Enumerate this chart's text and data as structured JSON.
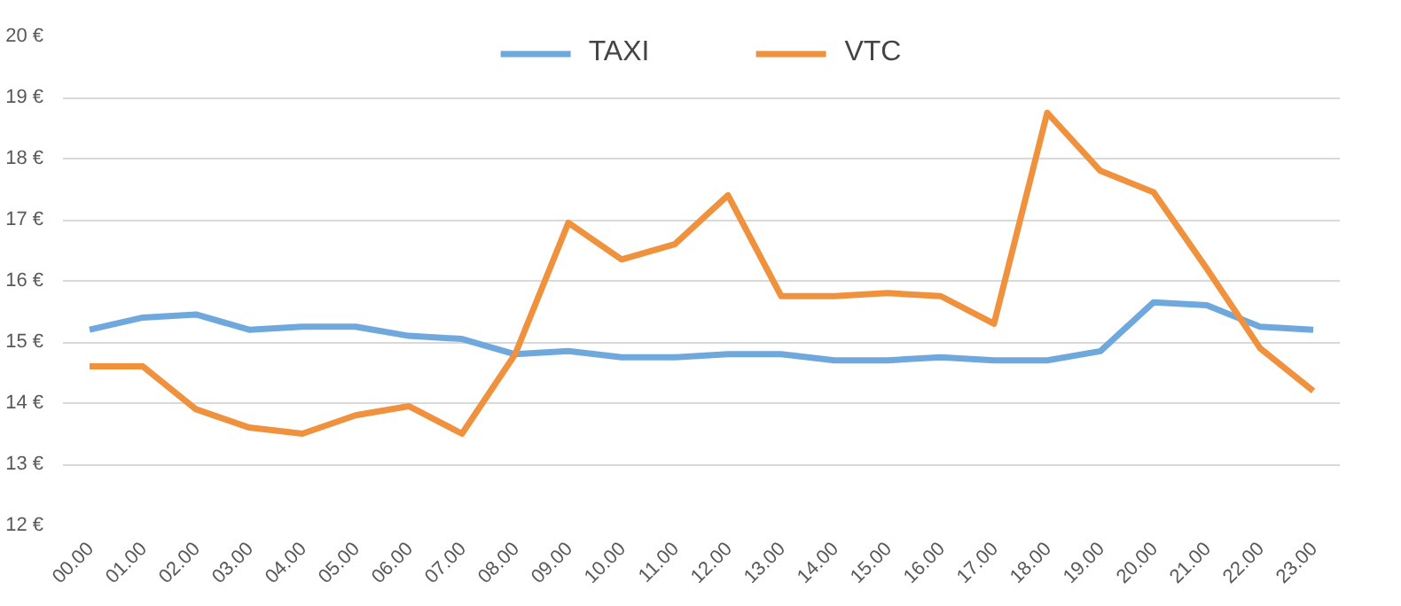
{
  "chart_data": {
    "type": "line",
    "categories": [
      "00.00",
      "01.00",
      "02.00",
      "03.00",
      "04.00",
      "05.00",
      "06.00",
      "07.00",
      "08.00",
      "09.00",
      "10.00",
      "11.00",
      "12.00",
      "13.00",
      "14.00",
      "15.00",
      "16.00",
      "17.00",
      "18.00",
      "19.00",
      "20.00",
      "21.00",
      "22.00",
      "23.00"
    ],
    "series": [
      {
        "name": "TAXI",
        "color": "#6fa8dc",
        "values": [
          15.2,
          15.4,
          15.45,
          15.2,
          15.25,
          15.25,
          15.1,
          15.05,
          14.8,
          14.85,
          14.75,
          14.75,
          14.8,
          14.8,
          14.7,
          14.7,
          14.75,
          14.7,
          14.7,
          14.85,
          15.65,
          15.6,
          15.25,
          15.2
        ]
      },
      {
        "name": "VTC",
        "color": "#f0913e",
        "values": [
          14.6,
          14.6,
          13.9,
          13.6,
          13.5,
          13.8,
          13.95,
          13.5,
          14.8,
          16.95,
          16.35,
          16.6,
          17.4,
          15.75,
          15.75,
          15.8,
          15.75,
          15.3,
          18.75,
          17.8,
          17.45,
          16.2,
          14.9,
          14.2
        ]
      }
    ],
    "ylim": [
      12,
      20
    ],
    "yticks": [
      {
        "value": 12,
        "label": "12 €"
      },
      {
        "value": 13,
        "label": "13 €"
      },
      {
        "value": 14,
        "label": "14 €"
      },
      {
        "value": 15,
        "label": "15 €"
      },
      {
        "value": 16,
        "label": "16 €"
      },
      {
        "value": 17,
        "label": "17 €"
      },
      {
        "value": 18,
        "label": "18 €"
      },
      {
        "value": 19,
        "label": "19 €"
      },
      {
        "value": 20,
        "label": "20 €"
      }
    ],
    "grid": "y",
    "legend": "top",
    "marker": "none",
    "line_style": "solid"
  }
}
